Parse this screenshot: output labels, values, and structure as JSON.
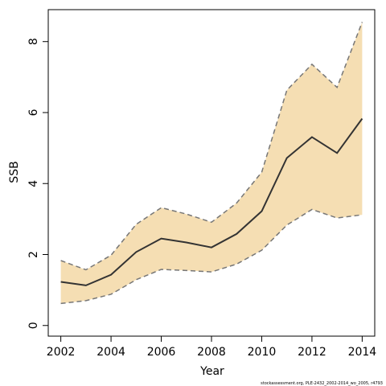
{
  "chart_data": {
    "type": "line",
    "xlabel": "Year",
    "ylabel": "SSB",
    "x_ticks": [
      2002,
      2004,
      2006,
      2008,
      2010,
      2012,
      2014
    ],
    "y_ticks": [
      0,
      2,
      4,
      6,
      8
    ],
    "xlim": [
      2001.5,
      2014.5
    ],
    "ylim": [
      -0.3,
      8.9
    ],
    "band_color": "#f5deb3",
    "line_color": "#333333",
    "bound_color": "#777777",
    "series": [
      {
        "x": [
          2002,
          2003,
          2004,
          2005,
          2006,
          2007,
          2008,
          2009,
          2010,
          2011,
          2012,
          2013,
          2014
        ],
        "values": [
          1.23,
          1.13,
          1.43,
          2.07,
          2.45,
          2.34,
          2.2,
          2.58,
          3.22,
          4.72,
          5.31,
          4.86,
          5.83
        ]
      }
    ],
    "lower": [
      0.62,
      0.7,
      0.88,
      1.29,
      1.58,
      1.55,
      1.51,
      1.73,
      2.12,
      2.83,
      3.27,
      3.03,
      3.12
    ],
    "upper": [
      1.83,
      1.57,
      1.98,
      2.85,
      3.32,
      3.14,
      2.91,
      3.45,
      4.32,
      6.63,
      7.36,
      6.71,
      8.55
    ]
  },
  "footer": "stockassessment.org, PLE-2432_2002-2014_wo_2005, r4793"
}
